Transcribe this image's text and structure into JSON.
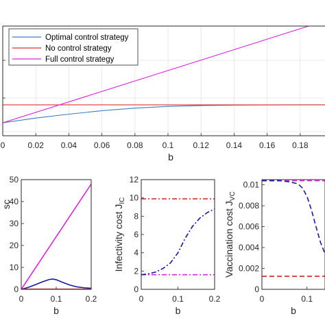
{
  "chart_data": [
    {
      "id": "top",
      "type": "line",
      "xlabel": "b",
      "ylabel": "",
      "xlim": [
        0,
        0.195
      ],
      "ylim": [
        -0.15,
        1.12
      ],
      "xticks": [
        0,
        0.02,
        0.04,
        0.06,
        0.08,
        0.1,
        0.12,
        0.14,
        0.16,
        0.18
      ],
      "xtick_labels": [
        "0",
        "0.02",
        "0.04",
        "0.06",
        "0.08",
        "0.1",
        "0.12",
        "0.14",
        "0.16",
        "0.18"
      ],
      "grid": true,
      "legend_position": "top-left",
      "series": [
        {
          "name": "Optimal control strategy",
          "color": "#3a7fbf",
          "dash": "solid",
          "x": [
            0,
            0.02,
            0.04,
            0.06,
            0.08,
            0.1,
            0.12,
            0.14,
            0.16,
            0.18,
            0.195
          ],
          "y": [
            0,
            0.055,
            0.1,
            0.14,
            0.17,
            0.19,
            0.2,
            0.205,
            0.207,
            0.208,
            0.208
          ]
        },
        {
          "name": "No control strategy",
          "color": "#e03030",
          "dash": "solid",
          "x": [
            0,
            0.195
          ],
          "y": [
            0.208,
            0.208
          ]
        },
        {
          "name": "Full control strategy",
          "color": "#dd22dd",
          "dash": "solid",
          "x": [
            0,
            0.195
          ],
          "y": [
            0,
            1.18
          ]
        }
      ]
    },
    {
      "id": "bl",
      "type": "line",
      "xlabel": "b",
      "ylabel": "sc",
      "xlim": [
        0,
        0.2
      ],
      "ylim": [
        0,
        50
      ],
      "xticks": [
        0,
        0.1,
        0.2
      ],
      "xtick_labels": [
        "0",
        "0.1",
        "0.2"
      ],
      "yticks": [
        0,
        10,
        20,
        30,
        40,
        50
      ],
      "ytick_labels": [
        "0",
        "10",
        "20",
        "30",
        "40",
        "50"
      ],
      "series": [
        {
          "color": "#dd22dd",
          "dash": "solid",
          "x": [
            0,
            0.2
          ],
          "y": [
            0,
            48
          ]
        },
        {
          "color": "#1515a8",
          "dash": "solid",
          "x": [
            0,
            0.02,
            0.04,
            0.06,
            0.08,
            0.09,
            0.1,
            0.12,
            0.14,
            0.16,
            0.18,
            0.2
          ],
          "y": [
            0,
            0.9,
            2.1,
            3.4,
            4.5,
            4.7,
            4.4,
            3.1,
            1.9,
            1.1,
            0.7,
            0.5
          ]
        },
        {
          "color": "#e03030",
          "dash": "solid",
          "x": [
            0,
            0.2
          ],
          "y": [
            0.1,
            0.1
          ]
        }
      ]
    },
    {
      "id": "bm",
      "type": "line",
      "xlabel": "b",
      "ylabel": "Infectivity cost J",
      "ylabel_sub": "IC",
      "xlim": [
        0,
        0.2
      ],
      "ylim": [
        0,
        12
      ],
      "xticks": [
        0,
        0.1,
        0.2
      ],
      "xtick_labels": [
        "0",
        "0.1",
        "0.2"
      ],
      "yticks": [
        0,
        2,
        4,
        6,
        8,
        10,
        12
      ],
      "ytick_labels": [
        "0",
        "2",
        "4",
        "6",
        "8",
        "10",
        "12"
      ],
      "series": [
        {
          "color": "#d42020",
          "dash": "dashdot",
          "x": [
            0,
            0.2
          ],
          "y": [
            9.9,
            9.9
          ]
        },
        {
          "color": "#dd22dd",
          "dash": "dashdot",
          "x": [
            0,
            0.2
          ],
          "y": [
            1.6,
            1.6
          ]
        },
        {
          "color": "#1515a8",
          "dash": "dashdot",
          "x": [
            0,
            0.02,
            0.04,
            0.06,
            0.08,
            0.1,
            0.11,
            0.12,
            0.14,
            0.16,
            0.18,
            0.2
          ],
          "y": [
            1.6,
            1.7,
            1.9,
            2.3,
            2.9,
            4.0,
            4.8,
            5.6,
            6.9,
            7.8,
            8.4,
            8.8
          ]
        }
      ]
    },
    {
      "id": "br",
      "type": "line",
      "xlabel": "b",
      "ylabel": "Vaccination cost J",
      "ylabel_sub": "VC",
      "xlim": [
        0,
        0.14
      ],
      "ylim": [
        0,
        0.0105
      ],
      "xticks": [
        0,
        0.1
      ],
      "xtick_labels": [
        "0",
        "0.1"
      ],
      "yticks": [
        0,
        0.002,
        0.004,
        0.006,
        0.008,
        0.01
      ],
      "ytick_labels": [
        "0",
        "0.002",
        "0.004",
        "0.006",
        "0.008",
        "0.01"
      ],
      "series": [
        {
          "color": "#dd22dd",
          "dash": "dashed",
          "x": [
            0,
            0.14
          ],
          "y": [
            0.0104,
            0.0104
          ]
        },
        {
          "color": "#d42020",
          "dash": "dashed",
          "x": [
            0,
            0.14
          ],
          "y": [
            0.00125,
            0.00125
          ]
        },
        {
          "color": "#1515a8",
          "dash": "dashed",
          "x": [
            0,
            0.04,
            0.06,
            0.08,
            0.09,
            0.1,
            0.11,
            0.12,
            0.13,
            0.14
          ],
          "y": [
            0.0104,
            0.0104,
            0.0103,
            0.0101,
            0.0097,
            0.0089,
            0.0076,
            0.006,
            0.0045,
            0.0034
          ]
        }
      ]
    }
  ]
}
